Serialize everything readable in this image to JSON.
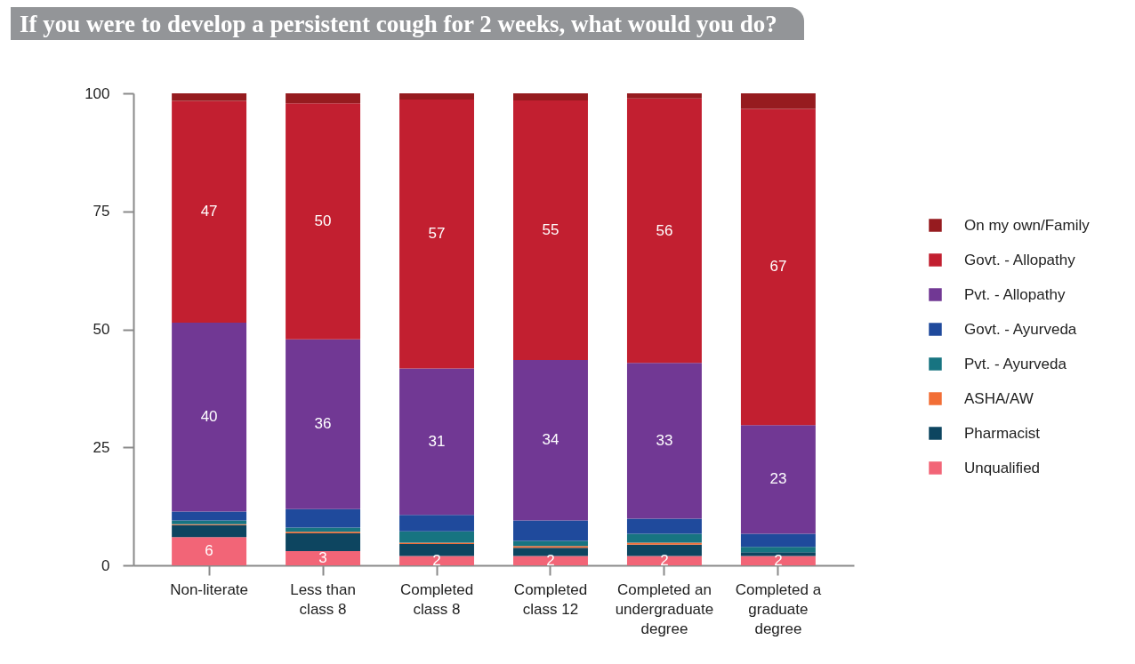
{
  "chart_data": {
    "type": "bar",
    "title": "If you were to develop a persistent cough for 2 weeks, what would you do?",
    "categories": [
      "Non-literate",
      "Less than class 8",
      "Completed class 8",
      "Completed class 12",
      "Completed an undergraduate degree",
      "Completed a graduate degree"
    ],
    "stacked": true,
    "ylim": [
      0,
      100
    ],
    "yticks": [
      0,
      25,
      50,
      75,
      100
    ],
    "legend": "right",
    "series": [
      {
        "name": "Unqualified",
        "color": "#f26577",
        "values": [
          6,
          3,
          2,
          2,
          2,
          2
        ],
        "value_labels": [
          "6",
          "3",
          "2",
          "2",
          "2",
          "2"
        ]
      },
      {
        "name": "Pharmacist",
        "color": "#0d4560",
        "values": [
          2.5,
          3.8,
          2.5,
          1.7,
          2.4,
          0.8
        ]
      },
      {
        "name": "ASHA/AW",
        "color": "#f26e36",
        "values": [
          0.2,
          0.3,
          0.3,
          0.4,
          0.4,
          null
        ]
      },
      {
        "name": "Pvt. - Ayurveda",
        "color": "#177481",
        "values": [
          0.8,
          0.9,
          2.4,
          1.1,
          1.9,
          1.1
        ]
      },
      {
        "name": "Govt. - Ayurveda",
        "color": "#1f4a9c",
        "values": [
          1.9,
          3.9,
          3.5,
          4.3,
          3.2,
          2.8
        ]
      },
      {
        "name": "Pvt. - Allopathy",
        "color": "#713894",
        "values": [
          40,
          36,
          31,
          34,
          33,
          23
        ],
        "value_labels": [
          "40",
          "36",
          "31",
          "34",
          "33",
          "23"
        ]
      },
      {
        "name": "Govt. - Allopathy",
        "color": "#c21f30",
        "values": [
          47,
          50,
          57,
          55,
          56,
          67
        ],
        "value_labels": [
          "47",
          "50",
          "57",
          "55",
          "56",
          "67"
        ]
      },
      {
        "name": "On my own/Family",
        "color": "#961b1f",
        "values": [
          1.6,
          2.1,
          1.3,
          1.5,
          1.1,
          3.3
        ]
      }
    ]
  }
}
